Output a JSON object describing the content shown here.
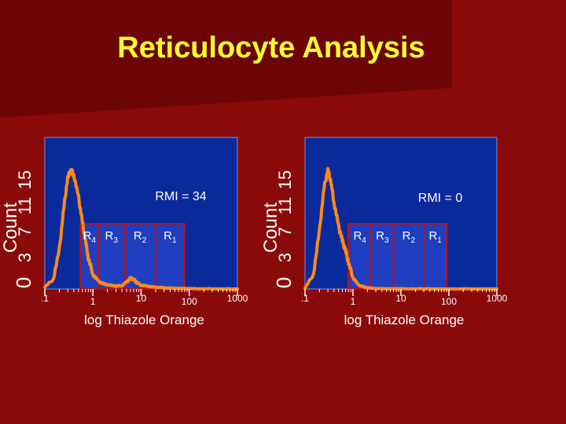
{
  "slide": {
    "title": "Reticulocyte Analysis",
    "colors": {
      "background": "#8a0a0a",
      "title": "#ffff33",
      "plot_area": "#0a2a9c",
      "histogram": "#ff8a1a",
      "region_box_fill": "#1f3fc0",
      "region_box_border": "#c01010"
    }
  },
  "chart_data": [
    {
      "type": "area",
      "title": "",
      "annotation": "RMI = 34",
      "xlabel": "log Thiazole Orange",
      "ylabel": "Count",
      "x_scale": "log",
      "xlim": [
        0.1,
        1000
      ],
      "x_ticks": [
        0.1,
        1,
        10,
        100,
        1000
      ],
      "x_tick_labels": [
        ".1",
        "1",
        "10",
        "100",
        "1000"
      ],
      "y_tick_labels": [
        "0",
        "3",
        "7",
        "11",
        "15"
      ],
      "ylim": [
        0,
        15
      ],
      "regions": [
        {
          "name": "R4",
          "main": "R",
          "sub": "4",
          "x_range": [
            0.55,
            1.3
          ]
        },
        {
          "name": "R3",
          "main": "R",
          "sub": "3",
          "x_range": [
            1.3,
            4.5
          ]
        },
        {
          "name": "R2",
          "main": "R",
          "sub": "2",
          "x_range": [
            4.5,
            20
          ]
        },
        {
          "name": "R1",
          "main": "R",
          "sub": "1",
          "x_range": [
            20,
            80
          ]
        }
      ],
      "series": [
        {
          "x": [
            0.1,
            0.15,
            0.2,
            0.25,
            0.3,
            0.35,
            0.4,
            0.5,
            0.6,
            0.7,
            0.8,
            1.0,
            1.3,
            1.7,
            2.2,
            3,
            4,
            5,
            6,
            7,
            8,
            10,
            13,
            18,
            25,
            35,
            50,
            80,
            120,
            200,
            400,
            1000
          ],
          "y": [
            0.2,
            1.0,
            4.0,
            8.5,
            11.5,
            12.3,
            11.8,
            9.5,
            7.0,
            5.0,
            3.2,
            1.5,
            0.8,
            0.5,
            0.4,
            0.3,
            0.35,
            0.7,
            1.1,
            1.0,
            0.7,
            0.4,
            0.3,
            0.2,
            0.15,
            0.1,
            0.08,
            0.05,
            0.03,
            0.02,
            0.01,
            0.0
          ]
        }
      ]
    },
    {
      "type": "area",
      "title": "",
      "annotation": "RMI = 0",
      "xlabel": "log Thiazole Orange",
      "ylabel": "Count",
      "x_scale": "log",
      "xlim": [
        0.1,
        1000
      ],
      "x_ticks": [
        0.1,
        1,
        10,
        100,
        1000
      ],
      "x_tick_labels": [
        ".1",
        "1",
        "10",
        "100",
        "1000"
      ],
      "y_tick_labels": [
        "0",
        "3",
        "7",
        "11",
        "15"
      ],
      "ylim": [
        0,
        15
      ],
      "regions": [
        {
          "name": "R4",
          "main": "R",
          "sub": "4",
          "x_range": [
            0.8,
            2.4
          ]
        },
        {
          "name": "R3",
          "main": "R",
          "sub": "3",
          "x_range": [
            2.4,
            7.0
          ]
        },
        {
          "name": "R2",
          "main": "R",
          "sub": "2",
          "x_range": [
            7.0,
            30
          ]
        },
        {
          "name": "R1",
          "main": "R",
          "sub": "1",
          "x_range": [
            30,
            90
          ]
        }
      ],
      "series": [
        {
          "x": [
            0.1,
            0.15,
            0.2,
            0.25,
            0.3,
            0.35,
            0.4,
            0.5,
            0.6,
            0.7,
            0.8,
            1.0,
            1.3,
            1.7,
            2.2,
            3,
            5,
            10,
            30,
            100,
            1000
          ],
          "y": [
            0.1,
            1.5,
            6.0,
            10.5,
            12.3,
            11.0,
            9.0,
            6.5,
            5.0,
            4.0,
            2.8,
            1.2,
            0.4,
            0.2,
            0.1,
            0.05,
            0.03,
            0.02,
            0.01,
            0.0,
            0.0
          ]
        }
      ]
    }
  ]
}
